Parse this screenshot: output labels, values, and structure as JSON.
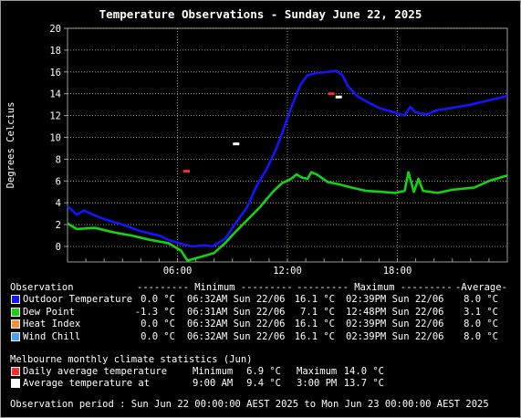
{
  "title": "Temperature Observations - Sunday June 22, 2025",
  "chart_data": {
    "type": "line",
    "title": "Temperature Observations - Sunday June 22, 2025",
    "ylabel": "Degrees Celcius",
    "xlabel": "",
    "ylim": [
      -1.5,
      20
    ],
    "xlim": [
      0,
      24
    ],
    "grid": true,
    "y_ticks": [
      "0",
      "2",
      "4",
      "6",
      "8",
      "10",
      "12",
      "14",
      "16",
      "18",
      "20"
    ],
    "x_ticks": [
      {
        "at": 6,
        "label": "06:00"
      },
      {
        "at": 12,
        "label": "12:00"
      },
      {
        "at": 18,
        "label": "18:00"
      }
    ],
    "series": [
      {
        "name": "Outdoor Temperature",
        "color": "#1414ff",
        "points": [
          [
            0,
            3.7
          ],
          [
            0.5,
            2.9
          ],
          [
            0.9,
            3.3
          ],
          [
            1.4,
            2.9
          ],
          [
            2,
            2.5
          ],
          [
            3,
            2.0
          ],
          [
            4,
            1.4
          ],
          [
            5,
            1.0
          ],
          [
            5.5,
            0.6
          ],
          [
            6.3,
            0.2
          ],
          [
            6.8,
            0.0
          ],
          [
            7.5,
            0.1
          ],
          [
            7.9,
            0.0
          ],
          [
            8.6,
            0.7
          ],
          [
            9.2,
            2.2
          ],
          [
            9.8,
            3.6
          ],
          [
            10.3,
            5.5
          ],
          [
            10.9,
            7.2
          ],
          [
            11.4,
            9.0
          ],
          [
            11.8,
            10.8
          ],
          [
            12.2,
            12.7
          ],
          [
            12.7,
            14.8
          ],
          [
            13.1,
            15.7
          ],
          [
            13.6,
            15.9
          ],
          [
            14.2,
            16.0
          ],
          [
            14.65,
            16.1
          ],
          [
            15.0,
            15.7
          ],
          [
            15.3,
            14.7
          ],
          [
            15.8,
            13.8
          ],
          [
            16.3,
            13.3
          ],
          [
            17,
            12.7
          ],
          [
            17.8,
            12.3
          ],
          [
            18.4,
            12.0
          ],
          [
            18.7,
            12.8
          ],
          [
            19.0,
            12.3
          ],
          [
            19.6,
            12.1
          ],
          [
            20.2,
            12.5
          ],
          [
            21,
            12.7
          ],
          [
            22,
            13.0
          ],
          [
            23,
            13.4
          ],
          [
            24,
            13.8
          ]
        ]
      },
      {
        "name": "Dew Point",
        "color": "#14d214",
        "points": [
          [
            0,
            2.1
          ],
          [
            0.5,
            1.6
          ],
          [
            1.5,
            1.7
          ],
          [
            2.5,
            1.3
          ],
          [
            3.5,
            1.0
          ],
          [
            4.5,
            0.6
          ],
          [
            5.5,
            0.3
          ],
          [
            6.2,
            -0.4
          ],
          [
            6.55,
            -1.3
          ],
          [
            7.2,
            -1.0
          ],
          [
            8,
            -0.6
          ],
          [
            8.6,
            0.3
          ],
          [
            9.2,
            1.4
          ],
          [
            9.8,
            2.4
          ],
          [
            10.5,
            3.6
          ],
          [
            11.2,
            5.0
          ],
          [
            11.7,
            5.8
          ],
          [
            12.2,
            6.2
          ],
          [
            12.5,
            6.6
          ],
          [
            12.8,
            6.3
          ],
          [
            13.1,
            6.2
          ],
          [
            13.3,
            6.8
          ],
          [
            13.6,
            6.6
          ],
          [
            14.2,
            5.9
          ],
          [
            14.8,
            5.7
          ],
          [
            15.5,
            5.4
          ],
          [
            16.3,
            5.1
          ],
          [
            17.2,
            5.0
          ],
          [
            17.9,
            4.9
          ],
          [
            18.4,
            5.1
          ],
          [
            18.6,
            6.8
          ],
          [
            18.9,
            5.0
          ],
          [
            19.15,
            6.2
          ],
          [
            19.4,
            5.1
          ],
          [
            20.2,
            4.9
          ],
          [
            21.0,
            5.2
          ],
          [
            22.2,
            5.4
          ],
          [
            23.0,
            6.0
          ],
          [
            24,
            6.5
          ]
        ]
      },
      {
        "name": "Heat Index",
        "color": "#ff8c32",
        "points": []
      },
      {
        "name": "Wind Chill",
        "color": "#46a0ff",
        "points": []
      }
    ],
    "markers": [
      {
        "name": "Daily average temperature",
        "color": "#ff2a2a",
        "points": [
          [
            6.5,
            6.9
          ],
          [
            14.4,
            14.0
          ]
        ]
      },
      {
        "name": "Average temperature",
        "color": "#ffffff",
        "points": [
          [
            9.2,
            9.4
          ],
          [
            14.8,
            13.7
          ]
        ]
      }
    ]
  },
  "stats": {
    "headers": {
      "obs": "Observation",
      "min": "--------- Minimum ---------",
      "max": "--------- Maximum ---------",
      "avg": "-Average-"
    },
    "rows": [
      {
        "swatch": "#1414ff",
        "label": "Outdoor Temperature",
        "min_val": "0.0 °C",
        "min_time": "06:32AM Sun 22/06",
        "max_val": "16.1 °C",
        "max_time": "02:39PM Sun 22/06",
        "avg": "8.0 °C"
      },
      {
        "swatch": "#14d214",
        "label": "Dew Point",
        "min_val": "-1.3 °C",
        "min_time": "06:31AM Sun 22/06",
        "max_val": "7.1 °C",
        "max_time": "12:48PM Sun 22/06",
        "avg": "3.1 °C"
      },
      {
        "swatch": "#ff8c32",
        "label": "Heat Index",
        "min_val": "0.0 °C",
        "min_time": "06:32AM Sun 22/06",
        "max_val": "16.1 °C",
        "max_time": "02:39PM Sun 22/06",
        "avg": "8.0 °C"
      },
      {
        "swatch": "#46a0ff",
        "label": "Wind Chill",
        "min_val": "0.0 °C",
        "min_time": "06:32AM Sun 22/06",
        "max_val": "16.1 °C",
        "max_time": "02:39PM Sun 22/06",
        "avg": "8.0 °C"
      }
    ]
  },
  "climate": {
    "heading": "Melbourne monthly climate statistics (Jun)",
    "rows": [
      {
        "swatch": "#ff2a2a",
        "label": "Daily average temperature",
        "c1": "Minimum",
        "v1": "6.9 °C",
        "c2": "Maximum",
        "v2": "14.0 °C"
      },
      {
        "swatch": "#ffffff",
        "label": "Average temperature at",
        "c1": "9:00 AM",
        "v1": "9.4 °C",
        "c2": "3:00 PM",
        "v2": "13.7 °C"
      }
    ]
  },
  "period": "Observation period : Sun Jun 22 00:00:00 AEST 2025 to Mon Jun 23 00:00:00 AEST 2025"
}
